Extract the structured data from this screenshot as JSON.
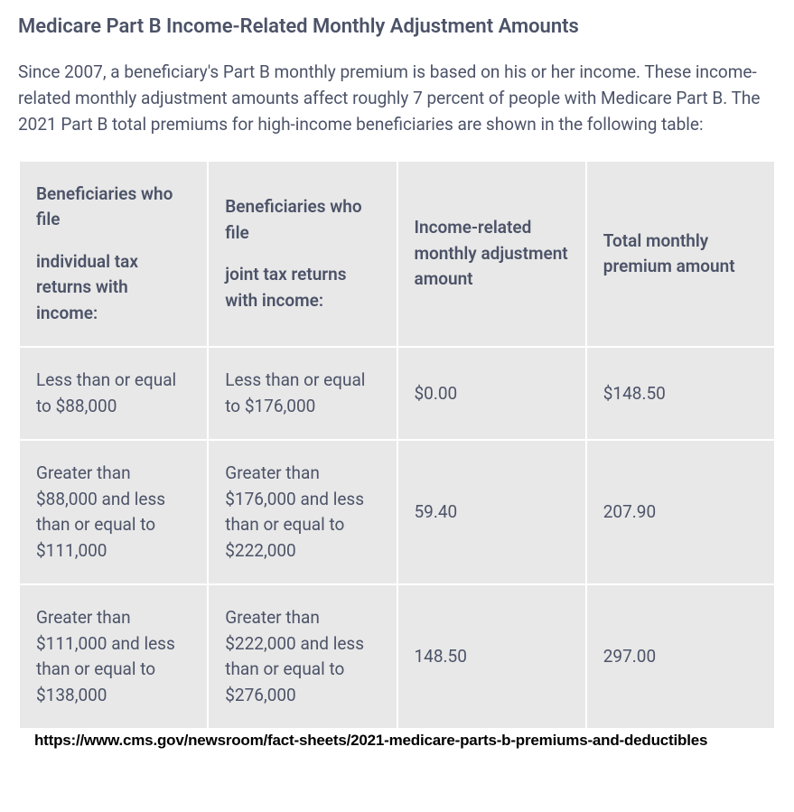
{
  "title": "Medicare Part B Income-Related Monthly Adjustment Amounts",
  "intro": "Since 2007, a beneficiary's Part B monthly premium is based on his or her income. These income-related monthly adjustment amounts affect roughly 7 percent of people with Medicare Part B. The 2021 Part B total premiums for high-income beneficiaries are shown in the following table:",
  "table": {
    "columns": [
      {
        "line1": "Beneficiaries who file",
        "line2": "individual tax returns with income:"
      },
      {
        "line1": "Beneficiaries who file",
        "line2": "joint tax returns with income:"
      },
      {
        "line1": "Income-related monthly adjustment amount",
        "line2": ""
      },
      {
        "line1": "Total monthly premium amount",
        "line2": ""
      }
    ],
    "rows": [
      [
        "Less than or equal to $88,000",
        "Less than or equal to $176,000",
        "$0.00",
        "$148.50"
      ],
      [
        "Greater than $88,000 and less than or equal to $111,000",
        "Greater than $176,000 and less than or equal to $222,000",
        "59.40",
        "207.90"
      ],
      [
        "Greater than $111,000 and less than or equal to $138,000",
        "Greater than $222,000 and less than or equal to $276,000",
        "148.50",
        "297.00"
      ]
    ],
    "header_bg": "#e8e8e8",
    "cell_bg": "#e8e8e8",
    "text_color": "#4c5368",
    "border_spacing": 2
  },
  "source_url": "https://www.cms.gov/newsroom/fact-sheets/2021-medicare-parts-b-premiums-and-deductibles"
}
